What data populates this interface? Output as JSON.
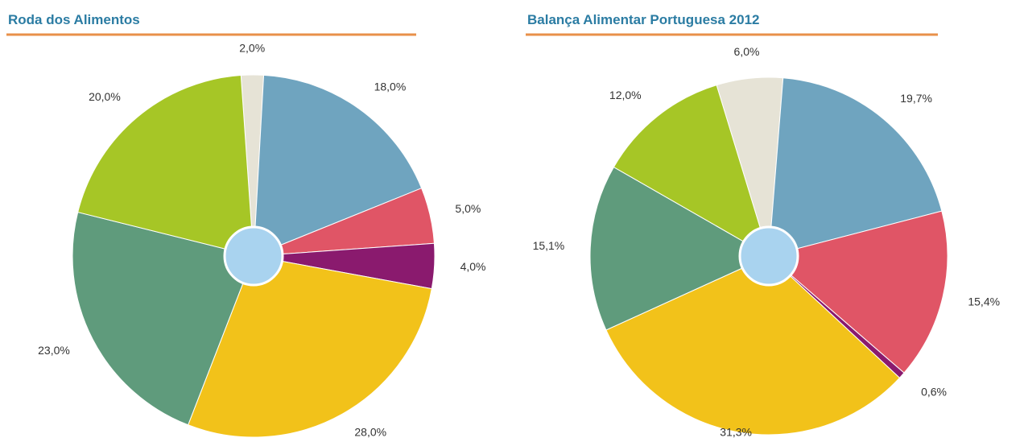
{
  "chart_data": [
    {
      "type": "pie",
      "title": "Roda dos Alimentos",
      "values": [
        2,
        18,
        5,
        4,
        28,
        23,
        20
      ],
      "value_labels": [
        "2,0%",
        "18,0%",
        "5,0%",
        "4,0%",
        "28,0%",
        "23,0%",
        "20,0%"
      ],
      "colors": [
        "#e6e3d6",
        "#6fa4bf",
        "#e05566",
        "#8a1a6e",
        "#f2c21a",
        "#5f9b7c",
        "#a6c626"
      ]
    },
    {
      "type": "pie",
      "title": "Balança Alimentar Portuguesa 2012",
      "values": [
        6,
        19.7,
        15.4,
        0.6,
        31.3,
        15.1,
        12
      ],
      "value_labels": [
        "6,0%",
        "19,7%",
        "15,4%",
        "0,6%",
        "31,3%",
        "15,1%",
        "12,0%"
      ],
      "colors": [
        "#e6e3d6",
        "#6fa4bf",
        "#e05566",
        "#8a1a6e",
        "#f2c21a",
        "#5f9b7c",
        "#a6c626"
      ]
    }
  ]
}
